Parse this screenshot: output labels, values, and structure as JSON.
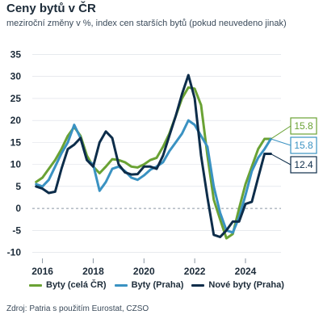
{
  "header": {
    "title": "Ceny bytů v ČR",
    "subtitle": "meziroční změny v %, index cen starších bytů (pokud neuvedeno jinak)"
  },
  "source": "Zdroj: Patria s použitím Eurostat, CZSO",
  "colors": {
    "green": "#6aa234",
    "lightblue": "#3a92c2",
    "navy": "#0d2d4a",
    "grid": "#d9dee4",
    "axis_text": "#1c2b39"
  },
  "chart_data": {
    "type": "line",
    "title": "",
    "xlabel": "",
    "ylabel": "",
    "x_ticks": [
      "2016",
      "2018",
      "2020",
      "2022",
      "2024"
    ],
    "y_ticks": [
      35,
      30,
      25,
      20,
      15,
      10,
      5,
      0,
      -5,
      -10
    ],
    "xlim": [
      2015.6,
      2025.4
    ],
    "ylim": [
      -11,
      36
    ],
    "grid": "horizontal",
    "zero_line": "dashed",
    "legend_position": "bottom",
    "series": [
      {
        "name": "Byty (celá ČR)",
        "color": "#6aa234",
        "end_label": "15.8",
        "x": [
          2015.75,
          2016.0,
          2016.25,
          2016.5,
          2016.75,
          2017.0,
          2017.25,
          2017.5,
          2017.75,
          2018.0,
          2018.25,
          2018.5,
          2018.75,
          2019.0,
          2019.25,
          2019.5,
          2019.75,
          2020.0,
          2020.25,
          2020.5,
          2020.75,
          2021.0,
          2021.25,
          2021.5,
          2021.75,
          2022.0,
          2022.25,
          2022.5,
          2022.75,
          2023.0,
          2023.25,
          2023.5,
          2023.75,
          2024.0,
          2024.25,
          2024.5,
          2024.75,
          2025.0
        ],
        "y": [
          6.0,
          7.0,
          9.0,
          11.0,
          13.5,
          16.5,
          18.5,
          16.5,
          12.0,
          9.5,
          8.0,
          9.5,
          11.2,
          11.0,
          10.5,
          9.5,
          9.3,
          10.0,
          11.0,
          11.5,
          14.0,
          17.0,
          21.0,
          25.0,
          27.5,
          27.2,
          23.5,
          12.0,
          2.0,
          -2.5,
          -6.8,
          -5.8,
          0.0,
          5.5,
          9.5,
          13.5,
          15.8,
          15.8
        ]
      },
      {
        "name": "Byty (Praha)",
        "color": "#3a92c2",
        "end_label": "15.8",
        "x": [
          2015.75,
          2016.0,
          2016.25,
          2016.5,
          2016.75,
          2017.0,
          2017.25,
          2017.5,
          2017.75,
          2018.0,
          2018.25,
          2018.5,
          2018.75,
          2019.0,
          2019.25,
          2019.5,
          2019.75,
          2020.0,
          2020.25,
          2020.5,
          2020.75,
          2021.0,
          2021.25,
          2021.5,
          2021.75,
          2022.0,
          2022.25,
          2022.5,
          2022.75,
          2023.0,
          2023.25,
          2023.5,
          2023.75,
          2024.0,
          2024.25,
          2024.5,
          2024.75,
          2025.0
        ],
        "y": [
          5.5,
          5.0,
          6.5,
          9.5,
          12.5,
          15.0,
          19.0,
          16.0,
          11.0,
          10.0,
          4.0,
          6.0,
          9.0,
          9.5,
          8.5,
          7.0,
          6.5,
          7.5,
          8.8,
          9.5,
          10.5,
          13.0,
          15.0,
          17.0,
          20.0,
          19.0,
          16.5,
          14.0,
          5.0,
          -1.0,
          -5.0,
          -5.5,
          -2.0,
          3.0,
          8.5,
          11.5,
          13.5,
          15.8
        ]
      },
      {
        "name": "Nové byty (Praha)",
        "color": "#0d2d4a",
        "end_label": "12.4",
        "x": [
          2015.75,
          2016.0,
          2016.25,
          2016.5,
          2016.75,
          2017.0,
          2017.25,
          2017.5,
          2017.75,
          2018.0,
          2018.25,
          2018.5,
          2018.75,
          2019.0,
          2019.25,
          2019.5,
          2019.75,
          2020.0,
          2020.25,
          2020.5,
          2020.75,
          2021.0,
          2021.25,
          2021.5,
          2021.75,
          2022.0,
          2022.25,
          2022.5,
          2022.75,
          2023.0,
          2023.25,
          2023.5,
          2023.75,
          2024.0,
          2024.25,
          2024.5,
          2024.75,
          2025.0
        ],
        "y": [
          5.0,
          4.5,
          3.5,
          3.8,
          9.0,
          13.5,
          14.5,
          16.0,
          11.0,
          9.5,
          15.0,
          17.5,
          16.0,
          10.0,
          8.2,
          7.7,
          7.8,
          9.5,
          9.5,
          9.0,
          12.0,
          16.5,
          21.0,
          26.0,
          30.3,
          25.0,
          12.0,
          2.5,
          -6.0,
          -6.5,
          -5.0,
          -3.0,
          -3.0,
          1.0,
          1.5,
          7.0,
          12.4,
          12.4
        ]
      }
    ]
  }
}
